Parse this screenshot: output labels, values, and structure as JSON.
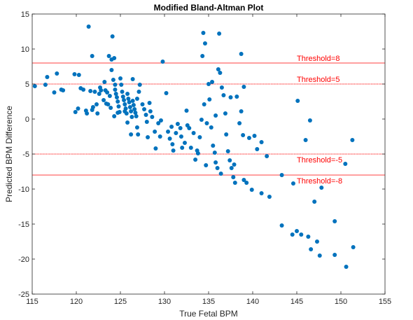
{
  "chart_data": {
    "type": "scatter",
    "title": "Modified Bland-Altman Plot",
    "xlabel": "True Fetal BPM",
    "ylabel": "Predicted BPM Difference",
    "xlim": [
      115,
      155
    ],
    "ylim": [
      -25,
      15
    ],
    "xticks": [
      "115",
      "120",
      "125",
      "130",
      "135",
      "140",
      "145",
      "150",
      "155"
    ],
    "yticks": [
      "15",
      "10",
      "5",
      "0",
      "-5",
      "-10",
      "-15",
      "-20",
      "-25"
    ],
    "grid": false,
    "colors": {
      "points": "#0072bd",
      "threshold_line": "#ff0000",
      "threshold_text": "#ff0000",
      "axis": "#262626"
    },
    "thresholds": [
      {
        "value": 8,
        "label": "Threshold=8",
        "style": "solid",
        "label_x": 145,
        "label_y": 8.1
      },
      {
        "value": 5,
        "label": "Threshold=5",
        "style": "dotted",
        "label_x": 145,
        "label_y": 5.1
      },
      {
        "value": -5,
        "label": "Threshold=-5",
        "style": "dotted",
        "label_x": 145,
        "label_y": -6.4
      },
      {
        "value": -8,
        "label": "Threshold=-8",
        "style": "solid",
        "label_x": 145,
        "label_y": -9.4
      }
    ],
    "points": [
      [
        115.3,
        4.7
      ],
      [
        116.5,
        4.9
      ],
      [
        116.7,
        6
      ],
      [
        117.5,
        3.8
      ],
      [
        117.8,
        6.5
      ],
      [
        118.3,
        4.2
      ],
      [
        118.5,
        4.1
      ],
      [
        119.8,
        6.4
      ],
      [
        119.9,
        1
      ],
      [
        120.3,
        6.3
      ],
      [
        120.2,
        1.5
      ],
      [
        120.8,
        4.2
      ],
      [
        121.2,
        0.8
      ],
      [
        121.4,
        13.2
      ],
      [
        121.6,
        4
      ],
      [
        121.8,
        9
      ],
      [
        121.9,
        1.7
      ],
      [
        121.8,
        1.3
      ],
      [
        122.1,
        3.9
      ],
      [
        122.4,
        0.8
      ],
      [
        122.6,
        3.6
      ],
      [
        122.8,
        4.1
      ],
      [
        123.1,
        2.7
      ],
      [
        123.3,
        4.1
      ],
      [
        123.5,
        3.8
      ],
      [
        123.7,
        9
      ],
      [
        123.6,
        2.1
      ],
      [
        123.8,
        3.3
      ],
      [
        124,
        8.5
      ],
      [
        124,
        7
      ],
      [
        124.1,
        11.8
      ],
      [
        124.2,
        5.6
      ],
      [
        124.3,
        8.7
      ],
      [
        124.4,
        4.9
      ],
      [
        124.4,
        4.2
      ],
      [
        124.5,
        3.6
      ],
      [
        124.6,
        3.1
      ],
      [
        124.7,
        2.5
      ],
      [
        124.8,
        1.8
      ],
      [
        124.9,
        1
      ],
      [
        125,
        5.8
      ],
      [
        125.1,
        4.9
      ],
      [
        125.2,
        3.9
      ],
      [
        125.3,
        3.2
      ],
      [
        125.4,
        2.7
      ],
      [
        125.5,
        2.1
      ],
      [
        125.6,
        1.5
      ],
      [
        125.7,
        0.8
      ],
      [
        125.8,
        3.6
      ],
      [
        125.9,
        2.9
      ],
      [
        126,
        2.4
      ],
      [
        126.1,
        1.7
      ],
      [
        126.2,
        1.1
      ],
      [
        126.3,
        0.3
      ],
      [
        126.4,
        2.6
      ],
      [
        126.5,
        2
      ],
      [
        126.6,
        1.4
      ],
      [
        126.7,
        0.9
      ],
      [
        126.8,
        0.4
      ],
      [
        126.9,
        -1.2
      ],
      [
        127,
        -2.2
      ],
      [
        126.2,
        -2.2
      ],
      [
        127.2,
        4.9
      ],
      [
        127.5,
        2.1
      ],
      [
        127.7,
        1.4
      ],
      [
        127.9,
        0.6
      ],
      [
        128,
        -0.4
      ],
      [
        128.3,
        2.3
      ],
      [
        128.4,
        1.1
      ],
      [
        128.6,
        0.3
      ],
      [
        128.9,
        -1.8
      ],
      [
        129,
        -4.2
      ],
      [
        129.3,
        -0.6
      ],
      [
        129.5,
        -2.5
      ],
      [
        129.8,
        8.2
      ],
      [
        130.2,
        3.7
      ],
      [
        130.4,
        -1.8
      ],
      [
        130.6,
        -2.8
      ],
      [
        130.9,
        -3.6
      ],
      [
        131,
        -4.5
      ],
      [
        131.3,
        -2
      ],
      [
        131.5,
        -0.7
      ],
      [
        131.8,
        -1.3
      ],
      [
        132,
        -4.1
      ],
      [
        132.3,
        -3.4
      ],
      [
        132.5,
        1.2
      ],
      [
        132.8,
        -1.3
      ],
      [
        133,
        -4.1
      ],
      [
        133.3,
        -2
      ],
      [
        133.5,
        -5.8
      ],
      [
        133.7,
        -4.5
      ],
      [
        134,
        -2.6
      ],
      [
        134.2,
        -0.1
      ],
      [
        134.3,
        9
      ],
      [
        134.4,
        12.3
      ],
      [
        134.6,
        10.8
      ],
      [
        134.8,
        -0.6
      ],
      [
        135,
        5
      ],
      [
        135.1,
        2.8
      ],
      [
        135.3,
        -1.2
      ],
      [
        135.5,
        -3.8
      ],
      [
        135.7,
        -4.8
      ],
      [
        135.8,
        -6.2
      ],
      [
        136,
        -7
      ],
      [
        136.2,
        12.2
      ],
      [
        136.3,
        6.6
      ],
      [
        136.5,
        4.5
      ],
      [
        136.7,
        3.4
      ],
      [
        136.9,
        0.8
      ],
      [
        137,
        -2.2
      ],
      [
        137.2,
        -4.6
      ],
      [
        137.4,
        -5.9
      ],
      [
        137.6,
        -7
      ],
      [
        137.8,
        -8.3
      ],
      [
        138,
        -9.1
      ],
      [
        138.2,
        3.2
      ],
      [
        138.5,
        -0.6
      ],
      [
        138.7,
        9.3
      ],
      [
        138.9,
        -2.3
      ],
      [
        139,
        -8.7
      ],
      [
        139.3,
        -9.1
      ],
      [
        139.6,
        -2.7
      ],
      [
        139.9,
        -10.1
      ],
      [
        140.2,
        -2.4
      ],
      [
        140.5,
        -4.3
      ],
      [
        141,
        -3.3
      ],
      [
        141,
        -10.6
      ],
      [
        141.6,
        -5.3
      ],
      [
        141.9,
        -11.1
      ],
      [
        143.3,
        -8
      ],
      [
        143.3,
        -15.2
      ],
      [
        144.5,
        -16.5
      ],
      [
        144.6,
        -9.2
      ],
      [
        145.1,
        2.6
      ],
      [
        145.5,
        -16.5
      ],
      [
        146,
        -3
      ],
      [
        146.3,
        -16.8
      ],
      [
        146.5,
        -0.2
      ],
      [
        146.6,
        -18.6
      ],
      [
        147,
        -11.8
      ],
      [
        147.3,
        -17.5
      ],
      [
        147.6,
        -19.5
      ],
      [
        147.8,
        -9.8
      ],
      [
        149.3,
        -14.6
      ],
      [
        149.3,
        -19.4
      ],
      [
        150.6,
        -21.1
      ],
      [
        151.3,
        -3
      ],
      [
        151.4,
        -18.3
      ],
      [
        150.5,
        -6.4
      ],
      [
        145.0,
        -16.0
      ],
      [
        128.1,
        -2.6
      ],
      [
        125.8,
        -0.5
      ],
      [
        124.3,
        0.4
      ],
      [
        122.7,
        4.5
      ],
      [
        123.2,
        5.3
      ],
      [
        126.4,
        5.7
      ],
      [
        127.1,
        3.9
      ],
      [
        135.4,
        5.3
      ],
      [
        136.1,
        7.1
      ],
      [
        135.8,
        0.5
      ],
      [
        134.5,
        2.1
      ],
      [
        137.5,
        3.1
      ],
      [
        138.7,
        1.1
      ],
      [
        139.0,
        4.6
      ],
      [
        133.8,
        -4.9
      ],
      [
        134.7,
        -6.6
      ],
      [
        136.4,
        -7.8
      ],
      [
        137.9,
        -6.5
      ],
      [
        132.6,
        -0.9
      ],
      [
        131.9,
        -2.5
      ],
      [
        130.8,
        -1.1
      ],
      [
        129.6,
        -0.2
      ],
      [
        126.9,
        2.9
      ],
      [
        125.5,
        1.1
      ],
      [
        124.7,
        0.9
      ],
      [
        123.9,
        1.6
      ],
      [
        123.4,
        2.2
      ],
      [
        122.3,
        2.1
      ],
      [
        121.1,
        1.2
      ],
      [
        120.5,
        4.4
      ]
    ]
  }
}
